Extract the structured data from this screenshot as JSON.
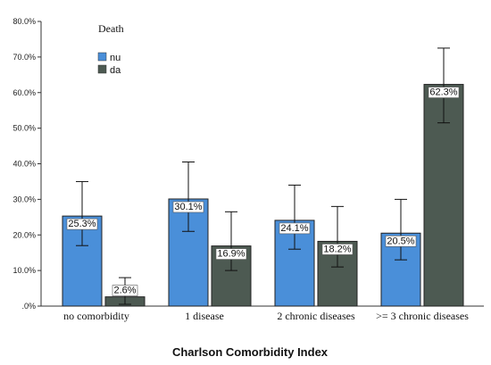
{
  "chart_data": {
    "type": "bar",
    "xlabel": "Charlson Comorbidity Index",
    "ylabel": "",
    "ylim": [
      0,
      80
    ],
    "yticks": [
      ".0%",
      "10.0%",
      "20.0%",
      "30.0%",
      "40.0%",
      "50.0%",
      "60.0%",
      "70.0%",
      "80.0%"
    ],
    "ytick_values": [
      0,
      10,
      20,
      30,
      40,
      50,
      60,
      70,
      80
    ],
    "categories": [
      "no comorbidity",
      "1 disease",
      "2 chronic diseases",
      ">= 3 chronic diseases"
    ],
    "legend": {
      "title": "Death",
      "placement": "top-left"
    },
    "grid": false,
    "series": [
      {
        "name": "nu",
        "color": "#4a8fd9",
        "values": [
          25.3,
          30.1,
          24.1,
          20.5
        ],
        "labels": [
          "25.3%",
          "30.1%",
          "24.1%",
          "20.5%"
        ],
        "error_low": [
          17,
          21,
          16,
          13
        ],
        "error_high": [
          35,
          40.5,
          34,
          30
        ]
      },
      {
        "name": "da",
        "color": "#4d5a52",
        "values": [
          2.6,
          16.9,
          18.2,
          62.3
        ],
        "labels": [
          "2.6%",
          "16.9%",
          "18.2%",
          "62.3%"
        ],
        "error_low": [
          0.5,
          10,
          11,
          51.5
        ],
        "error_high": [
          8,
          26.5,
          28,
          72.5
        ]
      }
    ]
  }
}
